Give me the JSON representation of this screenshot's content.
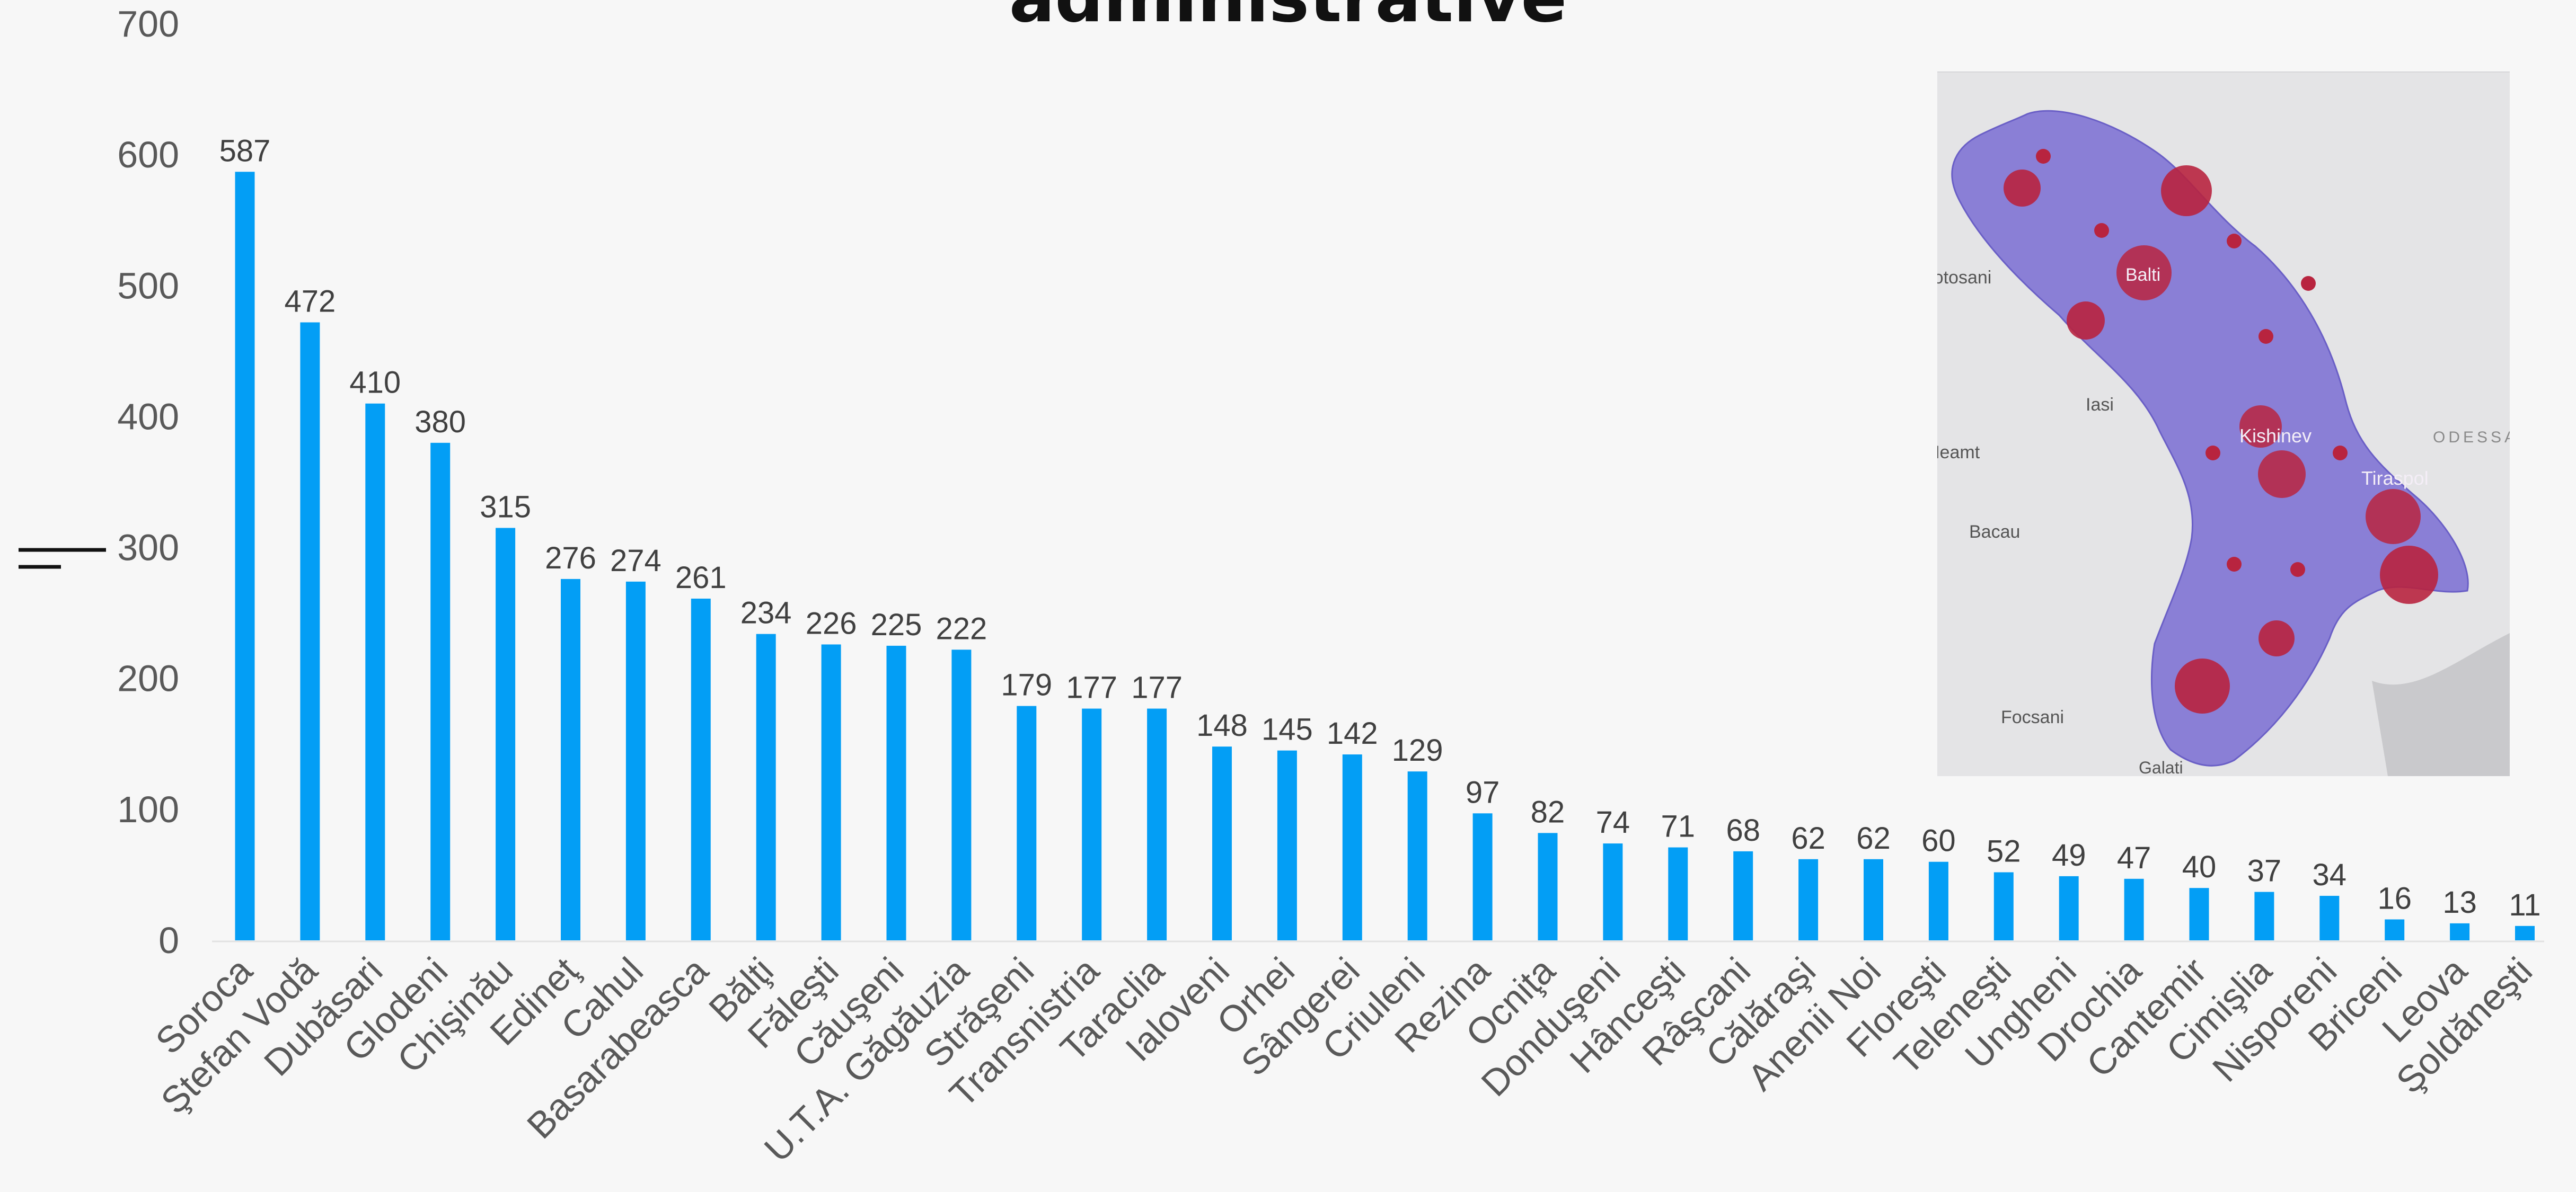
{
  "chart_data": {
    "type": "bar",
    "title": "administrative",
    "xlabel": "",
    "ylabel": "",
    "ylim": [
      0,
      700
    ],
    "yticks": [
      0,
      100,
      200,
      300,
      400,
      500,
      600,
      700
    ],
    "grid": false,
    "legend": "none",
    "bar_color": "#039ef5",
    "categories": [
      "Soroca",
      "Ştefan Vodă",
      "Dubăsari",
      "Glodeni",
      "Chişinău",
      "Edineţ",
      "Cahul",
      "Basarabeasca",
      "Bălţi",
      "Făleşti",
      "Căuşeni",
      "U.T.A. Găgăuzia",
      "Străşeni",
      "Transnistria",
      "Taraclia",
      "Ialoveni",
      "Orhei",
      "Sângerei",
      "Criuleni",
      "Rezina",
      "Ocniţa",
      "Donduşeni",
      "Hânceşti",
      "Râşcani",
      "Călăraşi",
      "Anenii Noi",
      "Floreşti",
      "Teleneşti",
      "Ungheni",
      "Drochia",
      "Cantemir",
      "Cimişlia",
      "Nisporeni",
      "Briceni",
      "Leova",
      "Şoldăneşti"
    ],
    "values": [
      587,
      472,
      410,
      380,
      315,
      276,
      274,
      261,
      234,
      226,
      225,
      222,
      179,
      177,
      177,
      148,
      145,
      142,
      129,
      97,
      82,
      74,
      71,
      68,
      62,
      62,
      60,
      52,
      49,
      47,
      40,
      37,
      34,
      16,
      13,
      11
    ]
  },
  "inset_map": {
    "labels": [
      "Balti",
      "Kishinev",
      "Tiraspol",
      "Botosani",
      "Iasi",
      "Neamt",
      "Bacau",
      "Focsani",
      "Galati",
      "ODESSA"
    ],
    "region_color": "#8a7fd6",
    "marker_color": "#b8243f"
  }
}
